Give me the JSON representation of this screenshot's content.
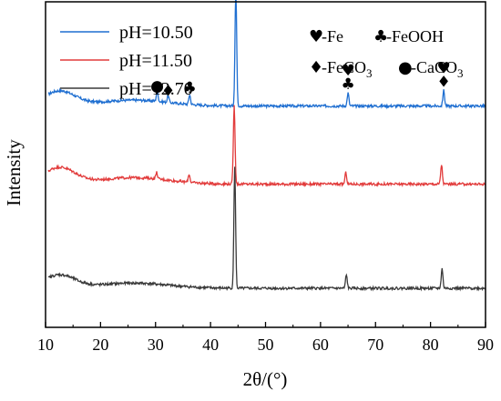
{
  "chart_data": {
    "type": "line",
    "xlabel": "2θ/(°)",
    "ylabel": "Intensity",
    "xlim": [
      10,
      90
    ],
    "xticks": [
      10,
      20,
      30,
      40,
      50,
      60,
      70,
      80,
      90
    ],
    "yticks_shown": false,
    "legend_position": "top-left",
    "series": [
      {
        "name": "pH=10.50",
        "color": "#1f6fd1",
        "baseline": 0.68,
        "hump": 0.045,
        "peaks": [
          {
            "x": 30.3,
            "h": 0.035
          },
          {
            "x": 32.3,
            "h": 0.02
          },
          {
            "x": 36.2,
            "h": 0.03
          },
          {
            "x": 44.6,
            "h": 0.355
          },
          {
            "x": 65.0,
            "h": 0.04
          },
          {
            "x": 82.4,
            "h": 0.048
          }
        ]
      },
      {
        "name": "pH=11.50",
        "color": "#e23b3b",
        "baseline": 0.44,
        "hump": 0.05,
        "peaks": [
          {
            "x": 30.2,
            "h": 0.02
          },
          {
            "x": 36.1,
            "h": 0.025
          },
          {
            "x": 44.3,
            "h": 0.24
          },
          {
            "x": 64.6,
            "h": 0.035
          },
          {
            "x": 82.0,
            "h": 0.06
          }
        ]
      },
      {
        "name": "pH=12.70",
        "color": "#3a3a3a",
        "baseline": 0.12,
        "hump": 0.04,
        "peaks": [
          {
            "x": 44.4,
            "h": 0.37
          },
          {
            "x": 64.7,
            "h": 0.04
          },
          {
            "x": 82.1,
            "h": 0.06
          }
        ]
      }
    ],
    "phase_key": [
      {
        "symbol": "♥",
        "label": "-Fe"
      },
      {
        "symbol": "♣",
        "label": "-FeOOH"
      },
      {
        "symbol": "♦",
        "label": "-FeCO",
        "subscript": "3"
      },
      {
        "symbol": "●",
        "label": "-CaCO",
        "subscript": "3"
      }
    ],
    "peak_markers": [
      {
        "x": 30.3,
        "symbols": [
          "●"
        ]
      },
      {
        "x": 32.3,
        "symbols": [
          "♦"
        ]
      },
      {
        "x": 36.2,
        "symbols": [
          "♣"
        ]
      },
      {
        "x": 44.6,
        "symbols": [
          "♥"
        ]
      },
      {
        "x": 65.0,
        "symbols": [
          "♥",
          "♣"
        ]
      },
      {
        "x": 82.4,
        "symbols": [
          "♥",
          "♦"
        ]
      }
    ]
  }
}
